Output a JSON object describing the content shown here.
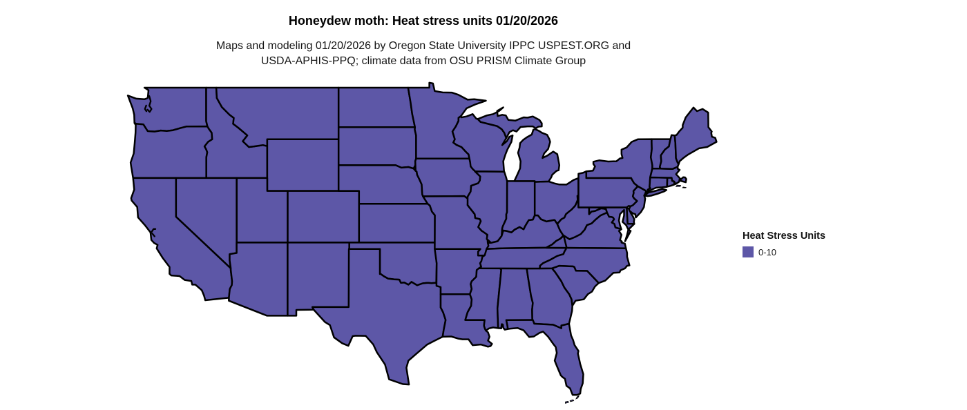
{
  "title": "Honeydew moth: Heat stress units 01/20/2026",
  "subtitle": {
    "line1": "Maps and modeling 01/20/2026 by Oregon State University IPPC USPEST.ORG and",
    "line2": "USDA-APHIS-PPQ; climate data from OSU PRISM Climate Group"
  },
  "legend": {
    "title": "Heat Stress Units",
    "items": [
      {
        "label": "0-10",
        "color": "#5d57a7"
      }
    ]
  },
  "map": {
    "region": "Contiguous United States",
    "fill": "#5d57a7",
    "border": "#000000",
    "background": "#ffffff",
    "value_all_states": "0-10"
  }
}
